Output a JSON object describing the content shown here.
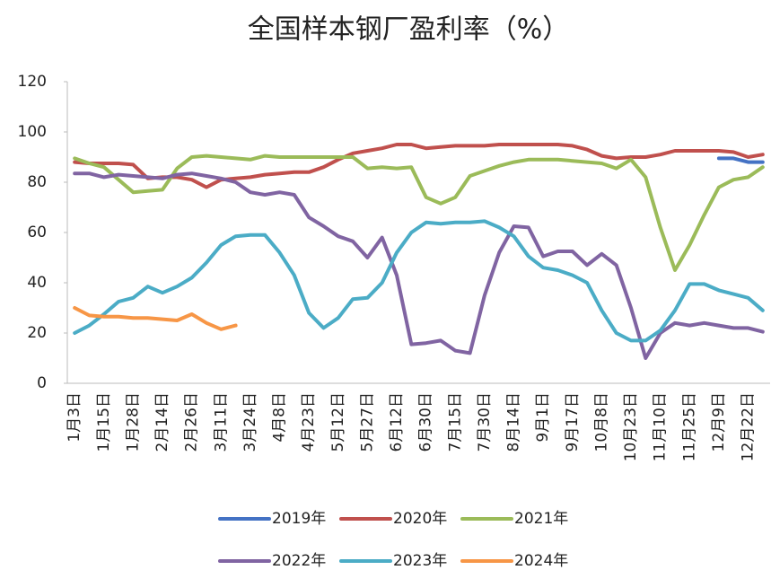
{
  "chart_data": {
    "type": "line",
    "title": "全国样本钢厂盈利率（%）",
    "categories": [
      "1月3日",
      null,
      "1月15日",
      null,
      "1月28日",
      null,
      "2月14日",
      null,
      "2月26日",
      null,
      "3月11日",
      null,
      "3月24日",
      null,
      "4月8日",
      null,
      "4月23日",
      null,
      "5月12日",
      null,
      "5月27日",
      null,
      "6月12日",
      null,
      "6月30日",
      null,
      "7月15日",
      null,
      "7月30日",
      null,
      "8月14日",
      null,
      "9月1日",
      null,
      "9月17日",
      null,
      "10月8日",
      null,
      "10月23日",
      null,
      "11月10日",
      null,
      "11月25日",
      null,
      "12月9日",
      null,
      "12月22日",
      null
    ],
    "ylim": [
      0,
      120
    ],
    "yticks": [
      0,
      20,
      40,
      60,
      80,
      100,
      120
    ],
    "grid": false,
    "series": [
      {
        "name": "2019年",
        "color": "#4472c4",
        "values": [
          null,
          null,
          null,
          null,
          null,
          null,
          null,
          null,
          null,
          null,
          null,
          null,
          null,
          null,
          null,
          null,
          null,
          null,
          null,
          null,
          null,
          null,
          null,
          null,
          null,
          null,
          null,
          null,
          null,
          null,
          null,
          null,
          null,
          null,
          null,
          null,
          null,
          null,
          null,
          null,
          null,
          null,
          null,
          null,
          89.5,
          89.5,
          88,
          88
        ]
      },
      {
        "name": "2020年",
        "color": "#c0504d",
        "values": [
          88,
          87.5,
          87.5,
          87.5,
          87,
          81.5,
          82,
          82,
          81,
          78,
          81,
          81.5,
          82,
          83,
          83.5,
          84,
          84,
          86,
          89,
          91.5,
          92.5,
          93.5,
          95,
          95,
          93.5,
          94,
          94.5,
          94.5,
          94.5,
          95,
          95,
          95,
          95,
          95,
          94.5,
          93,
          90.5,
          89.5,
          90,
          90,
          91,
          92.5,
          92.5,
          92.5,
          92.5,
          92,
          90,
          91
        ]
      },
      {
        "name": "2021年",
        "color": "#9bbb59",
        "values": [
          89.5,
          87.5,
          86,
          81,
          76,
          76.5,
          77,
          85.5,
          90,
          90.5,
          90,
          89.5,
          89,
          90.5,
          90,
          90,
          90,
          90,
          90,
          90,
          85.5,
          86,
          85.5,
          86,
          74,
          71.5,
          74,
          82.5,
          84.5,
          86.5,
          88,
          89,
          89,
          89,
          88.5,
          88,
          87.5,
          85.5,
          89,
          82,
          62,
          45,
          55,
          67,
          78,
          81,
          82,
          86
        ]
      },
      {
        "name": "2022年",
        "color": "#8064a2",
        "values": [
          83.5,
          83.5,
          82,
          83,
          82.5,
          82,
          81.5,
          83,
          83.5,
          82.5,
          81.5,
          80,
          76,
          75,
          76,
          75,
          66,
          62.5,
          58.5,
          56.5,
          50,
          58,
          43,
          15.5,
          16,
          17,
          13,
          12,
          35,
          52,
          62.5,
          62,
          50.5,
          52.5,
          52.5,
          47,
          51.5,
          47,
          30,
          10,
          20,
          24,
          23,
          24,
          23,
          22,
          22,
          20.5
        ]
      },
      {
        "name": "2023年",
        "color": "#4bacc6",
        "values": [
          20,
          23,
          27.5,
          32.5,
          34,
          38.5,
          36,
          38.5,
          42,
          48,
          55,
          58.5,
          59,
          59,
          52,
          43,
          28,
          22,
          26,
          33.5,
          34,
          40,
          52,
          60,
          64,
          63.5,
          64,
          64,
          64.5,
          62,
          58.5,
          50.5,
          46,
          45,
          43,
          40,
          29,
          20,
          17,
          17,
          21,
          29,
          39.5,
          39.5,
          37,
          35.5,
          34,
          29
        ]
      },
      {
        "name": "2024年",
        "color": "#f79646",
        "values": [
          30,
          27,
          26.5,
          26.5,
          26,
          26,
          25.5,
          25,
          27.5,
          24,
          21.5,
          23,
          null,
          null,
          null,
          null,
          null,
          null,
          null,
          null,
          null,
          null,
          null,
          null,
          null,
          null,
          null,
          null,
          null,
          null,
          null,
          null,
          null,
          null,
          null,
          null,
          null,
          null,
          null,
          null,
          null,
          null,
          null,
          null,
          null,
          null,
          null,
          null
        ]
      }
    ]
  }
}
